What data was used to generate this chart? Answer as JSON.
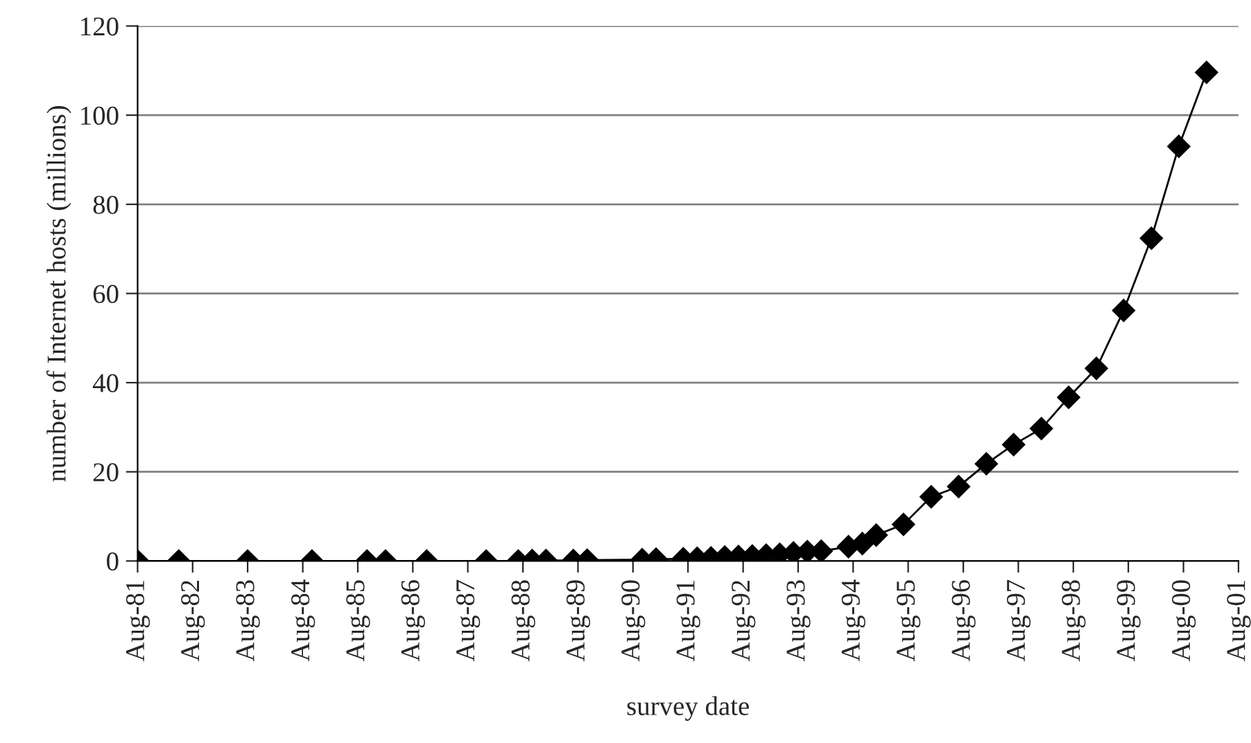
{
  "chart_data": {
    "type": "line",
    "xlabel": "survey date",
    "ylabel": "number of Internet hosts (millions)",
    "x": [
      "1981-08",
      "1982-05",
      "1983-08",
      "1984-10",
      "1985-10",
      "1986-02",
      "1986-11",
      "1987-12",
      "1988-07",
      "1988-10",
      "1989-01",
      "1989-07",
      "1989-10",
      "1990-10",
      "1991-01",
      "1991-07",
      "1991-10",
      "1992-01",
      "1992-04",
      "1992-07",
      "1992-10",
      "1993-01",
      "1993-04",
      "1993-07",
      "1993-10",
      "1994-01",
      "1994-07",
      "1994-10",
      "1995-01",
      "1995-07",
      "1996-01",
      "1996-07",
      "1997-01",
      "1997-07",
      "1998-01",
      "1998-07",
      "1999-01",
      "1999-07",
      "2000-01",
      "2000-07",
      "2001-01"
    ],
    "series": [
      {
        "color": "#000000",
        "values": [
          0.0,
          0.0,
          0.0,
          0.0,
          0.0,
          0.0,
          0.0,
          0.0,
          0.0,
          0.1,
          0.1,
          0.1,
          0.2,
          0.3,
          0.4,
          0.5,
          0.6,
          0.7,
          0.9,
          1.0,
          1.1,
          1.3,
          1.5,
          1.8,
          2.1,
          2.2,
          3.2,
          3.9,
          5.8,
          8.2,
          14.4,
          16.7,
          21.8,
          26.1,
          29.7,
          36.7,
          43.2,
          56.2,
          72.4,
          93.0,
          109.6
        ]
      }
    ],
    "xlim": [
      "1981-08",
      "2001-08"
    ],
    "xticks": [
      {
        "value": "1981-08",
        "label": "Aug-81"
      },
      {
        "value": "1982-08",
        "label": "Aug-82"
      },
      {
        "value": "1983-08",
        "label": "Aug-83"
      },
      {
        "value": "1984-08",
        "label": "Aug-84"
      },
      {
        "value": "1985-08",
        "label": "Aug-85"
      },
      {
        "value": "1986-08",
        "label": "Aug-86"
      },
      {
        "value": "1987-08",
        "label": "Aug-87"
      },
      {
        "value": "1988-08",
        "label": "Aug-88"
      },
      {
        "value": "1989-08",
        "label": "Aug-89"
      },
      {
        "value": "1990-08",
        "label": "Aug-90"
      },
      {
        "value": "1991-08",
        "label": "Aug-91"
      },
      {
        "value": "1992-08",
        "label": "Aug-92"
      },
      {
        "value": "1993-08",
        "label": "Aug-93"
      },
      {
        "value": "1994-08",
        "label": "Aug-94"
      },
      {
        "value": "1995-08",
        "label": "Aug-95"
      },
      {
        "value": "1996-08",
        "label": "Aug-96"
      },
      {
        "value": "1997-08",
        "label": "Aug-97"
      },
      {
        "value": "1998-08",
        "label": "Aug-98"
      },
      {
        "value": "1999-08",
        "label": "Aug-99"
      },
      {
        "value": "2000-08",
        "label": "Aug-00"
      },
      {
        "value": "2001-08",
        "label": "Aug-01"
      }
    ],
    "ylim": [
      0,
      120
    ],
    "yticks": [
      0,
      20,
      40,
      60,
      80,
      100,
      120
    ],
    "grid": "y",
    "legend": false,
    "marker": "diamond",
    "line_style": "solid"
  }
}
